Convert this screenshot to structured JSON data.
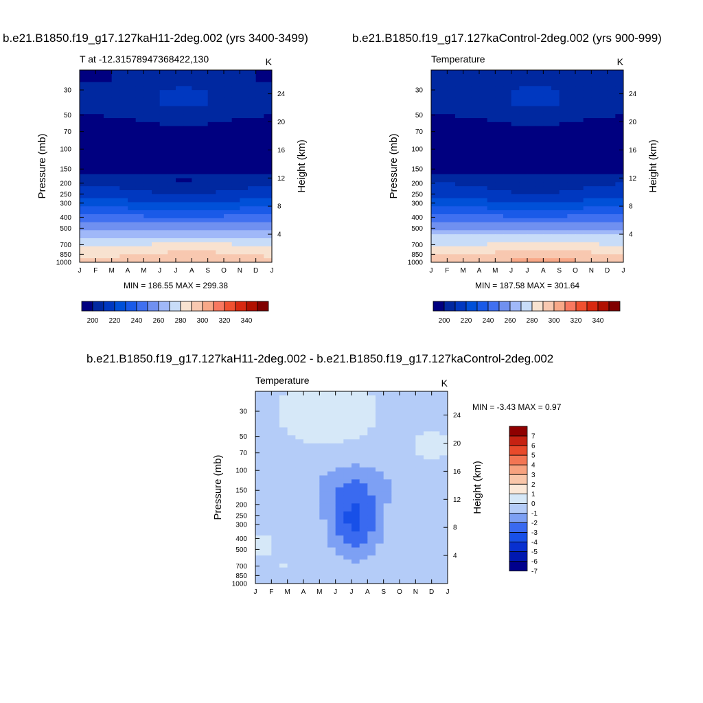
{
  "titles": {
    "top_left": "b.e21.B1850.f19_g17.127kaH11-2deg.002 (yrs 3400-3499)",
    "top_right": "b.e21.B1850.f19_g17.127kaControl-2deg.002 (yrs 900-999)",
    "bottom": "b.e21.B1850.f19_g17.127kaH11-2deg.002 - b.e21.B1850.f19_g17.127kaControl-2deg.002"
  },
  "chart_data": [
    {
      "type": "heatmap",
      "panel": "top_left",
      "left_string": "T at -12.31578947368422,130",
      "right_string": "K",
      "ylabel": "Pressure (mb)",
      "ylabel_right": "Height (km)",
      "x_ticks": [
        "J",
        "F",
        "M",
        "A",
        "M",
        "J",
        "J",
        "A",
        "S",
        "O",
        "N",
        "D",
        "J"
      ],
      "y_ticks": [
        30,
        50,
        70,
        100,
        150,
        200,
        250,
        300,
        400,
        500,
        700,
        850,
        1000
      ],
      "y_scale": "log",
      "y_range_mb": [
        20,
        1000
      ],
      "height_ticks_km": [
        4,
        8,
        12,
        16,
        20,
        24
      ],
      "stats": "MIN = 186.55 MAX = 299.38",
      "min": 186.55,
      "max": 299.38,
      "colorbar_labels": [
        "200",
        "220",
        "240",
        "260",
        "280",
        "300",
        "320",
        "340"
      ],
      "colorbar_levels": [
        195,
        200,
        205,
        210,
        215,
        220,
        225,
        230,
        235,
        240,
        245,
        250,
        255,
        260,
        265,
        270,
        275,
        280,
        285,
        290,
        295,
        300,
        305,
        310,
        315,
        320,
        325,
        330,
        335,
        340,
        345
      ],
      "profile_by_pressure": [
        [
          25,
          203
        ],
        [
          30,
          207
        ],
        [
          40,
          207
        ],
        [
          50,
          204
        ],
        [
          70,
          192
        ],
        [
          100,
          190
        ],
        [
          150,
          195
        ],
        [
          200,
          205
        ],
        [
          250,
          213
        ],
        [
          300,
          222
        ],
        [
          400,
          242
        ],
        [
          500,
          258
        ],
        [
          700,
          280
        ],
        [
          850,
          290
        ],
        [
          1000,
          298
        ]
      ]
    },
    {
      "type": "heatmap",
      "panel": "top_right",
      "left_string": "Temperature",
      "right_string": "K",
      "ylabel": "Pressure (mb)",
      "ylabel_right": "Height (km)",
      "x_ticks": [
        "J",
        "F",
        "M",
        "A",
        "M",
        "J",
        "J",
        "A",
        "S",
        "O",
        "N",
        "D",
        "J"
      ],
      "y_ticks": [
        30,
        50,
        70,
        100,
        150,
        200,
        250,
        300,
        400,
        500,
        700,
        850,
        1000
      ],
      "y_scale": "log",
      "y_range_mb": [
        20,
        1000
      ],
      "height_ticks_km": [
        4,
        8,
        12,
        16,
        20,
        24
      ],
      "stats": "MIN = 187.58 MAX = 301.64",
      "min": 187.58,
      "max": 301.64,
      "colorbar_labels": [
        "200",
        "220",
        "240",
        "260",
        "280",
        "300",
        "320",
        "340"
      ],
      "colorbar_levels": [
        195,
        200,
        205,
        210,
        215,
        220,
        225,
        230,
        235,
        240,
        245,
        250,
        255,
        260,
        265,
        270,
        275,
        280,
        285,
        290,
        295,
        300,
        305,
        310,
        315,
        320,
        325,
        330,
        335,
        340,
        345
      ],
      "profile_by_pressure": [
        [
          25,
          204
        ],
        [
          30,
          207
        ],
        [
          40,
          207
        ],
        [
          50,
          204
        ],
        [
          70,
          192
        ],
        [
          100,
          191
        ],
        [
          150,
          196
        ],
        [
          200,
          206
        ],
        [
          250,
          214
        ],
        [
          300,
          223
        ],
        [
          400,
          243
        ],
        [
          500,
          259
        ],
        [
          700,
          282
        ],
        [
          850,
          292
        ],
        [
          1000,
          300
        ]
      ]
    },
    {
      "type": "heatmap",
      "panel": "bottom",
      "left_string": "Temperature",
      "right_string": "K",
      "ylabel": "Pressure (mb)",
      "ylabel_right": "Height (km)",
      "x_ticks": [
        "J",
        "F",
        "M",
        "A",
        "M",
        "J",
        "J",
        "A",
        "S",
        "O",
        "N",
        "D",
        "J"
      ],
      "y_ticks": [
        30,
        50,
        70,
        100,
        150,
        200,
        250,
        300,
        400,
        500,
        700,
        850,
        1000
      ],
      "y_scale": "log",
      "y_range_mb": [
        20,
        1000
      ],
      "height_ticks_km": [
        4,
        8,
        12,
        16,
        20,
        24
      ],
      "stats": "MIN =  -3.43 MAX =    0.97",
      "min": -3.43,
      "max": 0.97,
      "colorbar_labels": [
        "7",
        "6",
        "5",
        "4",
        "3",
        "2",
        "1",
        "0",
        "-1",
        "-2",
        "-3",
        "-4",
        "-5",
        "-6",
        "-7"
      ],
      "colorbar_levels": [
        -7,
        -6,
        -5,
        -4,
        -3,
        -2,
        -1,
        0,
        1,
        2,
        3,
        4,
        5,
        6,
        7
      ]
    }
  ],
  "colors": {
    "temperature_palette": [
      "#000080",
      "#0028a0",
      "#0038c0",
      "#0050d8",
      "#1a5ae8",
      "#4070f0",
      "#7090f0",
      "#a0b8f8",
      "#c8dcf8",
      "#f8e2d0",
      "#f8c8b0",
      "#f8a888",
      "#f87860",
      "#f05030",
      "#d82810",
      "#b01000",
      "#800000"
    ],
    "difference_palette": [
      "#00008c",
      "#0018b0",
      "#0830d0",
      "#1850e8",
      "#3a6af0",
      "#7da0f4",
      "#b4ccf8",
      "#d6e8f8",
      "#fbe8d8",
      "#f9c6a9",
      "#f7a27f",
      "#f27553",
      "#e84a2b",
      "#c62212",
      "#8f0000"
    ]
  }
}
